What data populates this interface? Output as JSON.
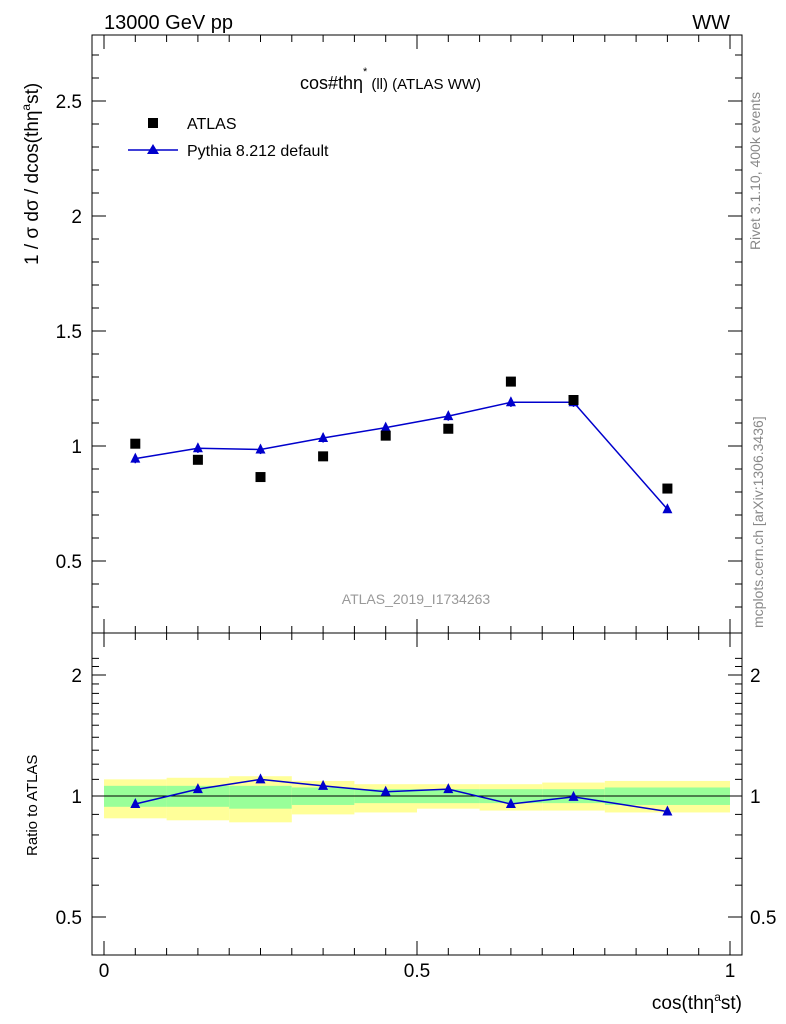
{
  "header": {
    "left": "13000 GeV pp",
    "right": "WW"
  },
  "side_labels": {
    "rivet": "Rivet 3.1.10,  400k events",
    "mcplots": "mcplots.cern.ch [arXiv:1306.3436]"
  },
  "chart_data": [
    {
      "type": "scatter",
      "panel": "main",
      "title": "cos#thη* (ll) (ATLAS WW)",
      "title_main": "cos#thη",
      "title_sup": "*",
      "title_rest": "(ll) (ATLAS WW)",
      "ylabel": "1 / σ  dσ / dcos(thη^ast)",
      "ylabel_a": "1 / σ  dσ / dcos(thη",
      "ylabel_sup": "a",
      "ylabel_b": "st)",
      "xlim": [
        0,
        1
      ],
      "ylim": [
        0.2,
        2.8
      ],
      "yticks": [
        0.5,
        1,
        1.5,
        2,
        2.5
      ],
      "ytick_labels": [
        "0.5",
        "1",
        "1.5",
        "2",
        "2.5"
      ],
      "watermark": "ATLAS_2019_I1734263",
      "legend_position": "top-left",
      "legend": [
        {
          "label": "ATLAS",
          "marker": "square",
          "color": "#000000"
        },
        {
          "label": "Pythia 8.212 default",
          "marker": "triangle",
          "color": "#0000cc"
        }
      ],
      "series": [
        {
          "name": "ATLAS",
          "color": "#000000",
          "x": [
            0.05,
            0.15,
            0.25,
            0.35,
            0.45,
            0.55,
            0.65,
            0.75,
            0.9
          ],
          "xerr": [
            0.05,
            0.05,
            0.05,
            0.05,
            0.05,
            0.05,
            0.05,
            0.05,
            0.1
          ],
          "y": [
            1.01,
            0.94,
            0.865,
            0.955,
            1.045,
            1.075,
            1.28,
            1.2,
            0.815
          ]
        },
        {
          "name": "Pythia 8.212 default",
          "color": "#0000cc",
          "x": [
            0.05,
            0.15,
            0.25,
            0.35,
            0.45,
            0.55,
            0.65,
            0.75,
            0.9
          ],
          "y": [
            0.945,
            0.99,
            0.985,
            1.035,
            1.08,
            1.13,
            1.19,
            1.19,
            0.725
          ],
          "yerr": [
            0.02,
            0.02,
            0.02,
            0.02,
            0.02,
            0.02,
            0.02,
            0.02,
            0.01
          ]
        }
      ]
    },
    {
      "type": "scatter",
      "panel": "ratio",
      "ylabel": "Ratio to ATLAS",
      "xlabel": "cos(thη^ast)",
      "xlabel_a": "cos(thη",
      "xlabel_sup": "a",
      "xlabel_b": "st)",
      "xlim": [
        0,
        1
      ],
      "ylim": [
        0.3,
        2.3
      ],
      "yticks": [
        0.5,
        1,
        2
      ],
      "ytick_labels": [
        "0.5",
        "1",
        "2"
      ],
      "xticks": [
        0,
        0.5,
        1
      ],
      "xtick_labels": [
        "0",
        "0.5",
        "1"
      ],
      "bands": {
        "edges": [
          0,
          0.1,
          0.2,
          0.3,
          0.4,
          0.5,
          0.6,
          0.7,
          0.8,
          1.0
        ],
        "yellow_colour": "#ffff99",
        "green_colour": "#99ff99",
        "yellow_low": [
          0.88,
          0.87,
          0.86,
          0.9,
          0.91,
          0.93,
          0.92,
          0.92,
          0.91
        ],
        "yellow_high": [
          1.1,
          1.11,
          1.12,
          1.09,
          1.07,
          1.07,
          1.07,
          1.08,
          1.09
        ],
        "green_low": [
          0.94,
          0.94,
          0.93,
          0.95,
          0.96,
          0.96,
          0.96,
          0.96,
          0.95
        ],
        "green_high": [
          1.06,
          1.06,
          1.06,
          1.05,
          1.04,
          1.04,
          1.04,
          1.04,
          1.05
        ]
      },
      "series": [
        {
          "name": "Pythia 8.212 default",
          "color": "#0000cc",
          "x": [
            0.05,
            0.15,
            0.25,
            0.35,
            0.45,
            0.55,
            0.65,
            0.75,
            0.9
          ],
          "y": [
            0.955,
            1.04,
            1.1,
            1.06,
            1.025,
            1.04,
            0.955,
            0.995,
            0.915
          ]
        }
      ]
    }
  ]
}
